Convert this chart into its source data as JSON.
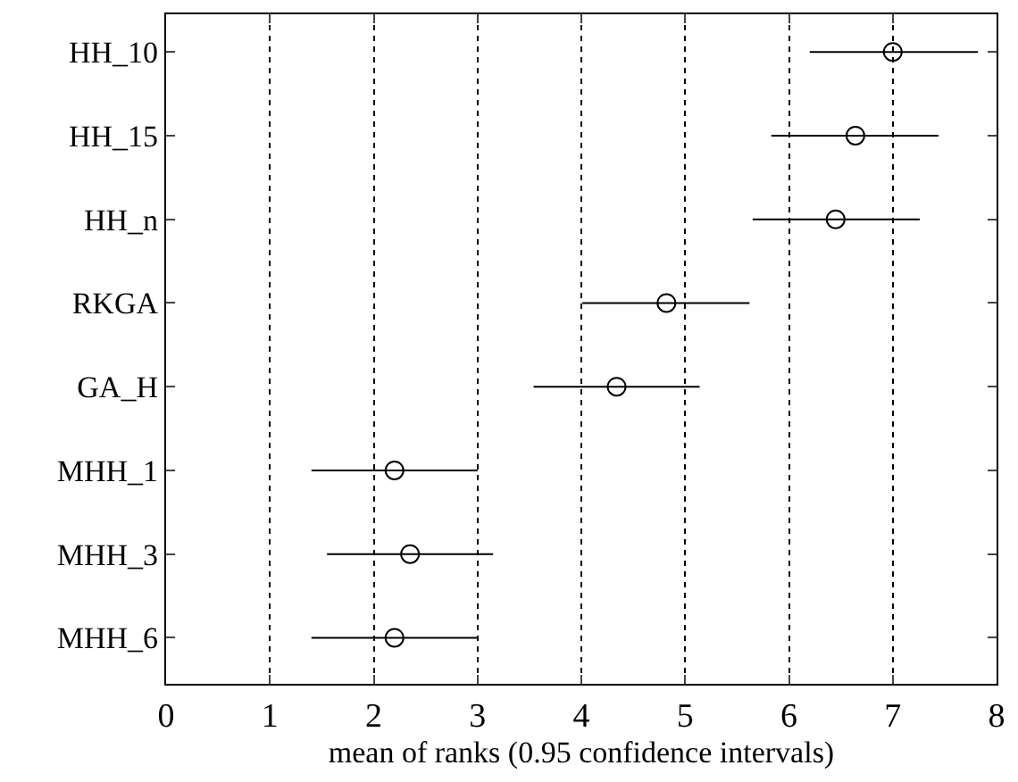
{
  "chart_data": {
    "type": "scatter",
    "xlabel": "mean of ranks (0.95 confidence intervals)",
    "categories": [
      "HH_10",
      "HH_15",
      "HH_n",
      "RKGA",
      "GA_H",
      "MHH_1",
      "MHH_3",
      "MHH_6"
    ],
    "values": [
      7.0,
      6.64,
      6.45,
      4.82,
      4.34,
      2.2,
      2.35,
      2.2
    ],
    "errors": [
      [
        6.2,
        7.82
      ],
      [
        5.83,
        7.44
      ],
      [
        5.65,
        7.26
      ],
      [
        4.01,
        5.62
      ],
      [
        3.54,
        5.14
      ],
      [
        1.4,
        3.0
      ],
      [
        1.55,
        3.15
      ],
      [
        1.4,
        3.0
      ]
    ],
    "color": "#000000",
    "orientation": "horizontal",
    "xlim": [
      0,
      8
    ],
    "xticks": [
      0,
      1,
      2,
      3,
      4,
      5,
      6,
      7,
      8
    ],
    "grid": "x",
    "marker": "circle",
    "legend": false
  }
}
